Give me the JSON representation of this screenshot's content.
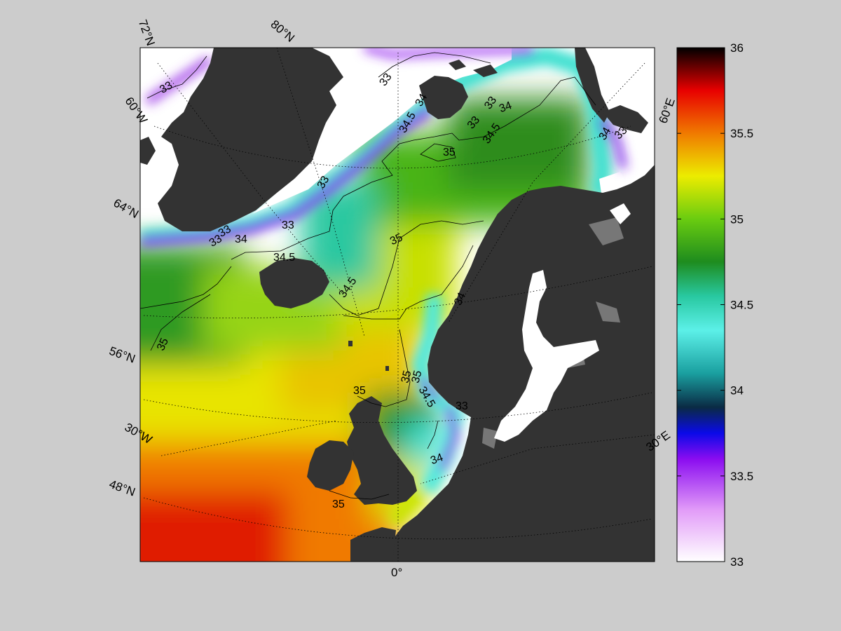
{
  "graticule_labels": {
    "lat_72": "72°N",
    "lat_80": "80°N",
    "lon_60w": "60°W",
    "lat_64": "64°N",
    "lat_56": "56°N",
    "lon_30w": "30°W",
    "lat_48": "48°N",
    "lon_0": "0°",
    "lon_30e": "30°E",
    "lon_60e": "60°E"
  },
  "contour_labels": [
    "33",
    "33",
    "33",
    "33",
    "33",
    "33",
    "33",
    "34.5",
    "34",
    "34",
    "33",
    "34.5",
    "34",
    "33",
    "34",
    "35",
    "35",
    "34.5",
    "34.5",
    "34",
    "35",
    "35",
    "35",
    "35",
    "34.5",
    "33",
    "34",
    "35"
  ],
  "colorbar": {
    "min": 33,
    "max": 36,
    "ticks": [
      "36",
      "35.5",
      "35",
      "34.5",
      "34",
      "33.5",
      "33"
    ],
    "stops": [
      {
        "value": 33.0,
        "color": "#ffffff"
      },
      {
        "value": 33.3,
        "color": "#e29cf8"
      },
      {
        "value": 33.6,
        "color": "#8a0cf0"
      },
      {
        "value": 33.75,
        "color": "#0a0ae8"
      },
      {
        "value": 33.9,
        "color": "#0a2a44"
      },
      {
        "value": 34.1,
        "color": "#1aa0a0"
      },
      {
        "value": 34.35,
        "color": "#5cf0e8"
      },
      {
        "value": 34.55,
        "color": "#28c8a0"
      },
      {
        "value": 34.75,
        "color": "#1e8c1e"
      },
      {
        "value": 35.0,
        "color": "#6acc10"
      },
      {
        "value": 35.25,
        "color": "#ecec00"
      },
      {
        "value": 35.5,
        "color": "#f07a00"
      },
      {
        "value": 35.75,
        "color": "#e80000"
      },
      {
        "value": 36.0,
        "color": "#000000"
      }
    ]
  },
  "colors": {
    "background": "#cccccc",
    "land": "#333333",
    "ice_or_nodata": "#ffffff",
    "lakes": "#ffffff",
    "inland_seas_gray": "#777777"
  }
}
